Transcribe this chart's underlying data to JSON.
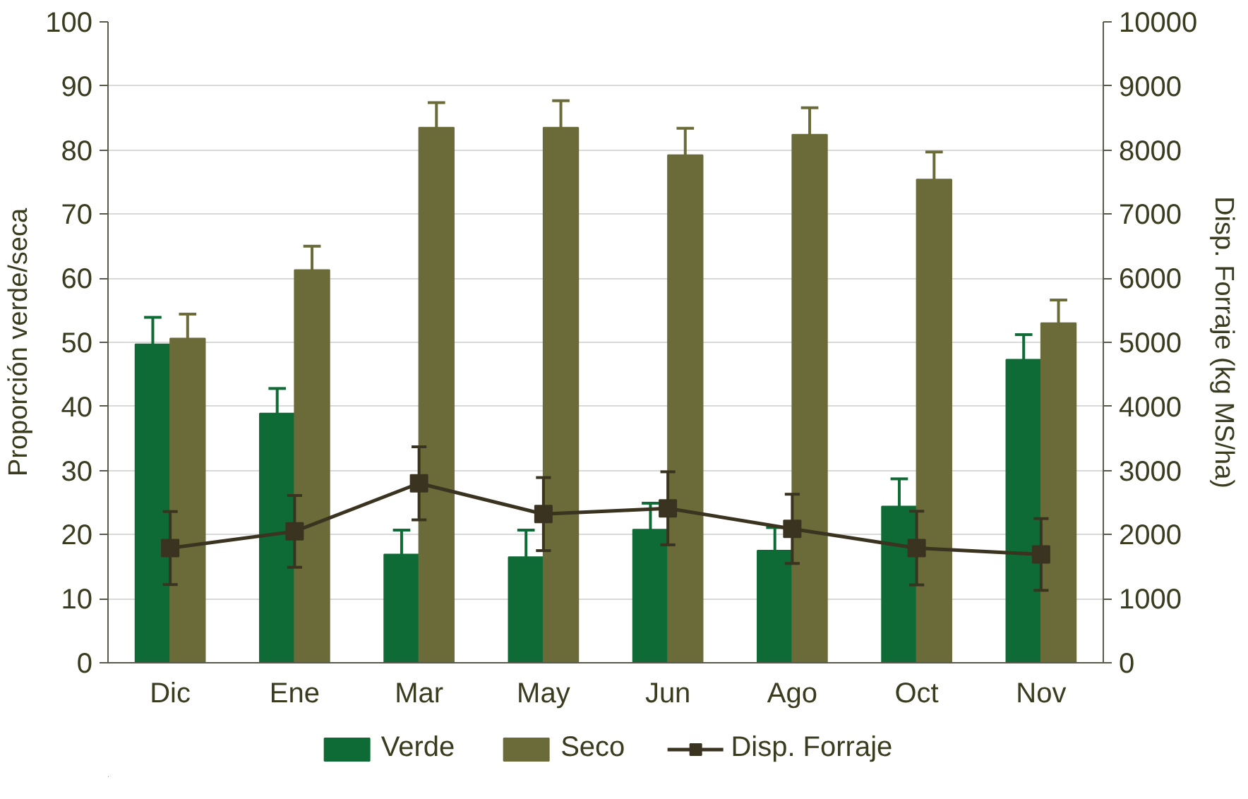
{
  "chart_data": {
    "type": "bar",
    "categories": [
      "Dic",
      "Ene",
      "Mar",
      "May",
      "Jun",
      "Ago",
      "Oct",
      "Nov"
    ],
    "ylabel": "Proporción verde/seca",
    "y2label": "Disp. Forraje (kg MS/ha)",
    "ylim": [
      0,
      100
    ],
    "yticks": [
      0,
      10,
      20,
      30,
      40,
      50,
      60,
      70,
      80,
      90,
      100
    ],
    "y2lim": [
      0,
      10000
    ],
    "y2ticks": [
      0,
      1000,
      2000,
      3000,
      4000,
      5000,
      6000,
      7000,
      8000,
      9000,
      10000
    ],
    "grid": "y",
    "legend": "bottom",
    "series": [
      {
        "name": "Verde",
        "type": "bar",
        "color": "#0f6b35",
        "values": [
          49.7,
          38.9,
          16.9,
          16.5,
          20.8,
          17.5,
          24.4,
          47.3
        ],
        "errors": [
          4.2,
          3.9,
          3.8,
          4.2,
          4.1,
          3.6,
          4.3,
          3.9
        ]
      },
      {
        "name": "Seco",
        "type": "bar",
        "color": "#6b6b3a",
        "values": [
          50.6,
          61.3,
          83.5,
          83.5,
          79.2,
          82.4,
          75.4,
          53.0
        ],
        "errors": [
          3.8,
          3.7,
          3.9,
          4.2,
          4.2,
          4.2,
          4.3,
          3.6
        ]
      },
      {
        "name": "Disp. Forraje",
        "type": "line",
        "axis": "y2",
        "color": "#3a3320",
        "marker": "square",
        "line_style": "solid",
        "values": [
          1790,
          2050,
          2800,
          2320,
          2410,
          2090,
          1790,
          1690
        ],
        "errors": [
          570,
          560,
          570,
          570,
          570,
          540,
          575,
          560
        ]
      }
    ]
  }
}
